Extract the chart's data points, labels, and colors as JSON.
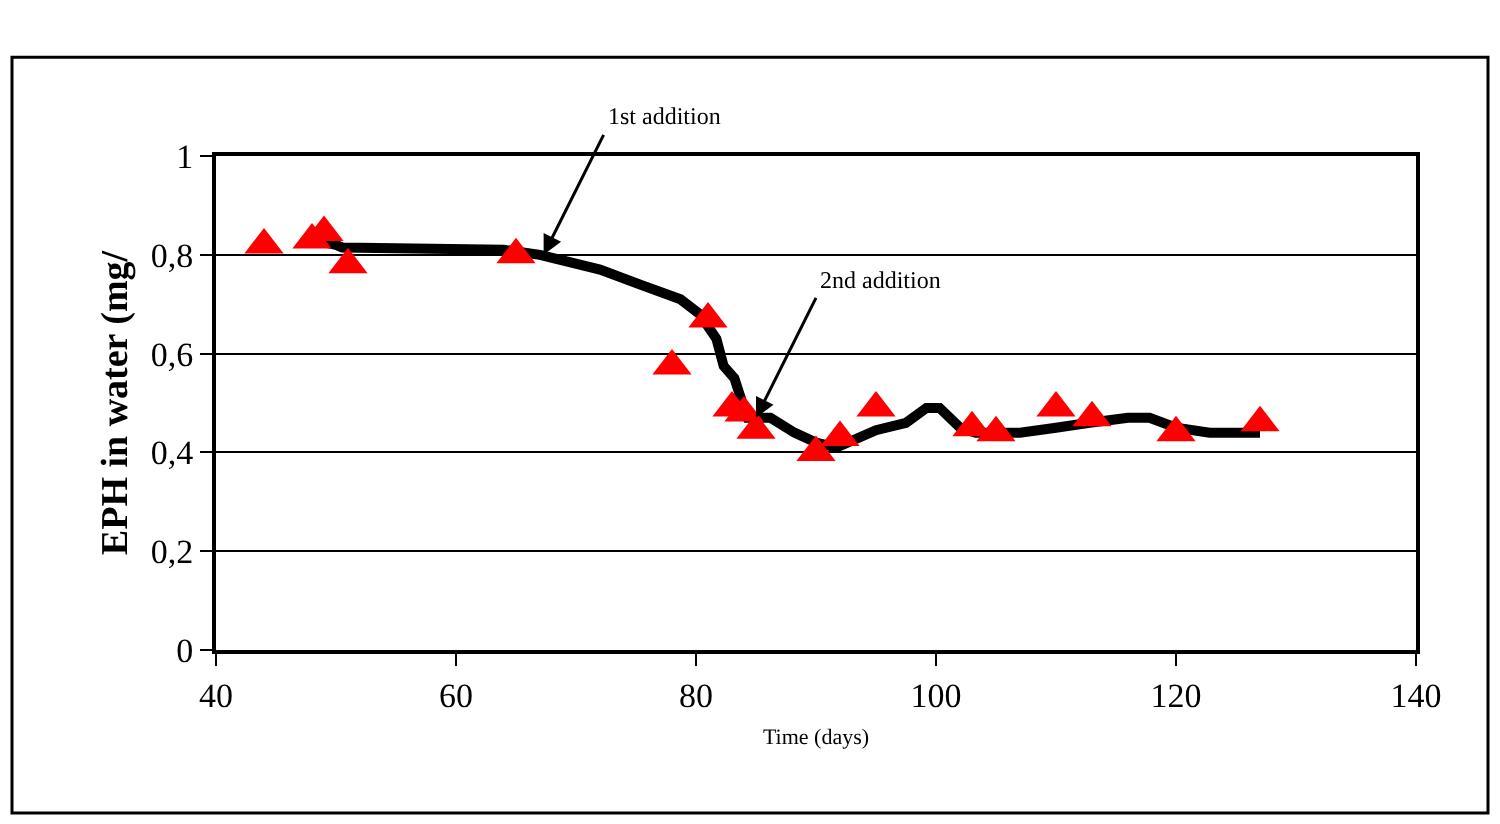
{
  "chart_data": {
    "type": "scatter",
    "xlabel": "Time (days)",
    "ylabel": "EPH in water (mg/",
    "xlim": [
      40,
      140
    ],
    "xticks": [
      40,
      60,
      80,
      100,
      120,
      140
    ],
    "ylim": [
      0,
      1
    ],
    "yticks": [
      0,
      {
        "value": 0.2,
        "label": "0,2"
      },
      {
        "value": 0.4,
        "label": "0,4"
      },
      {
        "value": 0.6,
        "label": "0,6"
      },
      {
        "value": 0.8,
        "label": "0,8"
      },
      1
    ],
    "grid": "y",
    "legend": false,
    "series": [
      {
        "marker": "triangle",
        "color": "#ff0000",
        "x": [
          44,
          48,
          49,
          51,
          65,
          78,
          81,
          83,
          84,
          85,
          90,
          92,
          95,
          103,
          105,
          110,
          113,
          120,
          127
        ],
        "values": [
          0.82,
          0.83,
          0.845,
          0.78,
          0.8,
          0.575,
          0.67,
          0.49,
          0.48,
          0.445,
          0.4,
          0.43,
          0.49,
          0.45,
          0.44,
          0.49,
          0.47,
          0.44,
          0.46
        ]
      },
      {
        "type": "line",
        "marker": "none",
        "color": "#000000",
        "x": [
          49,
          50,
          50.5,
          64,
          67,
          72,
          75.3,
          78.7,
          80.3,
          81.7,
          82.3,
          83.2,
          84,
          84.3,
          86.2,
          88.2,
          90,
          91.7,
          95,
          97.5,
          99.2,
          100.3,
          102,
          103.3,
          107,
          110,
          112.8,
          116,
          117.8,
          120,
          122.8,
          127
        ],
        "values": [
          0.825,
          0.82,
          0.815,
          0.81,
          0.8,
          0.77,
          0.74,
          0.71,
          0.68,
          0.63,
          0.575,
          0.55,
          0.49,
          0.47,
          0.47,
          0.44,
          0.42,
          0.41,
          0.445,
          0.46,
          0.49,
          0.49,
          0.45,
          0.44,
          0.44,
          0.45,
          0.46,
          0.47,
          0.47,
          0.45,
          0.44,
          0.44
        ]
      }
    ],
    "annotations": [
      {
        "text": "1st addition",
        "x": 67.3,
        "y": 0.8
      },
      {
        "text": "2nd addition",
        "x": 85,
        "y": 0.47
      }
    ]
  }
}
